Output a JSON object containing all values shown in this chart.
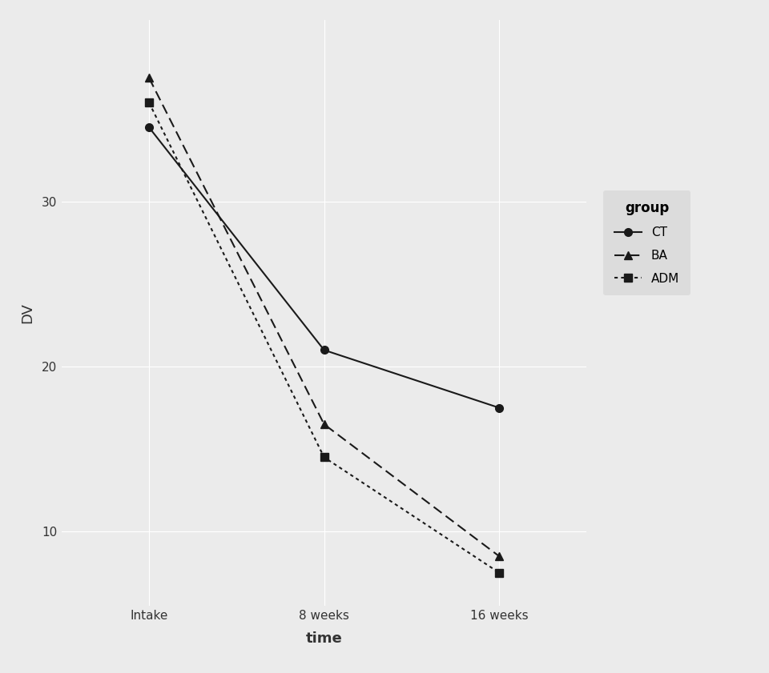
{
  "x_labels": [
    "Intake",
    "8 weeks",
    "16 weeks"
  ],
  "x_positions": [
    0,
    1,
    2
  ],
  "groups": {
    "CT": {
      "values": [
        34.5,
        21.0,
        17.5
      ],
      "linestyle": "solid",
      "marker": "o"
    },
    "BA": {
      "values": [
        37.5,
        16.5,
        8.5
      ],
      "linestyle": "dashed",
      "marker": "^"
    },
    "ADM": {
      "values": [
        36.0,
        14.5,
        7.5
      ],
      "linestyle": "dotted",
      "marker": "s"
    }
  },
  "ylim": [
    5.5,
    41
  ],
  "yticks": [
    10,
    20,
    30
  ],
  "ylabel": "DV",
  "xlabel": "time",
  "panel_color": "#EBEBEB",
  "fig_color": "#EBEBEB",
  "line_color": "#1a1a1a",
  "grid_color": "#ffffff",
  "legend_title": "group",
  "legend_bg": "#DCDCDC",
  "fontsize_axis_label": 13,
  "fontsize_tick": 11,
  "fontsize_legend_title": 12,
  "fontsize_legend_text": 11,
  "linewidth": 1.5,
  "markersize": 7
}
